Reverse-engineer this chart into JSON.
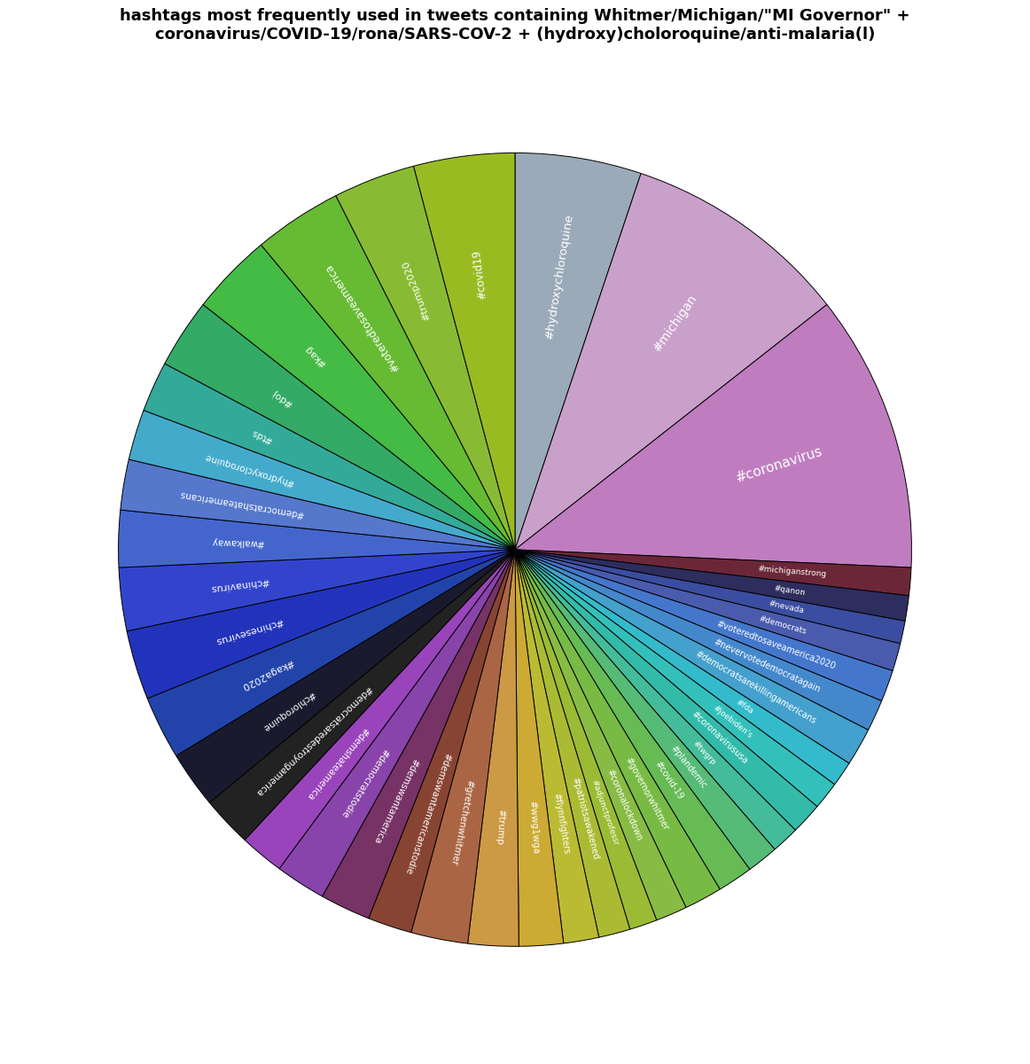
{
  "title": "hashtags most frequently used in tweets containing Whitmer/Michigan/\"MI Governor\" +\ncoronavirus/COVID-19/rona/SARS-COV-2 + (hydroxy)choloroquine/anti-malaria(l)",
  "slices": [
    {
      "label": "#hydroxychloroquine",
      "value": 10.0,
      "color": "#9BAAB8"
    },
    {
      "label": "#michigan",
      "value": 18.0,
      "color": "#C9A0CA"
    },
    {
      "label": "#coronavirus",
      "value": 22.0,
      "color": "#BF7DC0"
    },
    {
      "label": "#michiganstrong",
      "value": 2.2,
      "color": "#6B2737"
    },
    {
      "label": "#qanon",
      "value": 2.0,
      "color": "#2D2D5E"
    },
    {
      "label": "#nevada",
      "value": 1.8,
      "color": "#3B4DA0"
    },
    {
      "label": "#democrats",
      "value": 2.2,
      "color": "#4A5BAD"
    },
    {
      "label": "#voteredtosaveamerica2020",
      "value": 2.5,
      "color": "#4477CC"
    },
    {
      "label": "#nevervotedemocratagain",
      "value": 2.5,
      "color": "#4488CC"
    },
    {
      "label": "#democratsarekillingamericans",
      "value": 3.0,
      "color": "#44A0CC"
    },
    {
      "label": "#fda",
      "value": 2.0,
      "color": "#33BBCC"
    },
    {
      "label": "#joebiden's",
      "value": 2.2,
      "color": "#33C0BB"
    },
    {
      "label": "#coronavirususa",
      "value": 2.5,
      "color": "#33BBAA"
    },
    {
      "label": "#twgrp",
      "value": 2.2,
      "color": "#44BB99"
    },
    {
      "label": "#plandemic",
      "value": 2.5,
      "color": "#55BB77"
    },
    {
      "label": "#covid-19",
      "value": 2.8,
      "color": "#66BB55"
    },
    {
      "label": "#governorwhitmer",
      "value": 3.0,
      "color": "#77BB44"
    },
    {
      "label": "#coronalockdown",
      "value": 2.5,
      "color": "#88BB44"
    },
    {
      "label": "#adjunctprofessr",
      "value": 2.2,
      "color": "#9ABB33"
    },
    {
      "label": "#patriotsawakened",
      "value": 2.5,
      "color": "#AABB33"
    },
    {
      "label": "#flynnfighters",
      "value": 2.8,
      "color": "#BBBB33"
    },
    {
      "label": "#wwg1wga",
      "value": 3.5,
      "color": "#CCAA33"
    },
    {
      "label": "#trump",
      "value": 4.0,
      "color": "#CC9944"
    },
    {
      "label": "#gretchenwhitmer",
      "value": 4.5,
      "color": "#AA6644"
    },
    {
      "label": "#demswantamericanstodie",
      "value": 3.5,
      "color": "#884433"
    },
    {
      "label": "#demswantamerica",
      "value": 4.0,
      "color": "#773366"
    },
    {
      "label": "#democratstodie",
      "value": 4.0,
      "color": "#8844AA"
    },
    {
      "label": "#demshateamerica",
      "value": 3.5,
      "color": "#9944BB"
    },
    {
      "label": "#democratsaredestroyngamerica",
      "value": 4.0,
      "color": "#222222"
    },
    {
      "label": "#chloroquine",
      "value": 4.5,
      "color": "#1A1A2E"
    },
    {
      "label": "#kaga2020",
      "value": 5.0,
      "color": "#2244AA"
    },
    {
      "label": "#chinesevirus",
      "value": 5.5,
      "color": "#2233BB"
    },
    {
      "label": "#chinavirus",
      "value": 5.0,
      "color": "#3344CC"
    },
    {
      "label": "#walkaway",
      "value": 4.5,
      "color": "#4466CC"
    },
    {
      "label": "#democratshateamericans",
      "value": 4.0,
      "color": "#5577CC"
    },
    {
      "label": "#hydroxycloroquine",
      "value": 4.0,
      "color": "#44AACC"
    },
    {
      "label": "#tds",
      "value": 4.0,
      "color": "#33AA99"
    },
    {
      "label": "#doj",
      "value": 5.5,
      "color": "#33AA66"
    },
    {
      "label": "#kag",
      "value": 6.5,
      "color": "#44BB44"
    },
    {
      "label": "#voteredtosaveamerica",
      "value": 7.0,
      "color": "#66BB33"
    },
    {
      "label": "#trump2020",
      "value": 6.5,
      "color": "#88BB33"
    },
    {
      "label": "#covid19",
      "value": 8.0,
      "color": "#99BB22"
    }
  ]
}
